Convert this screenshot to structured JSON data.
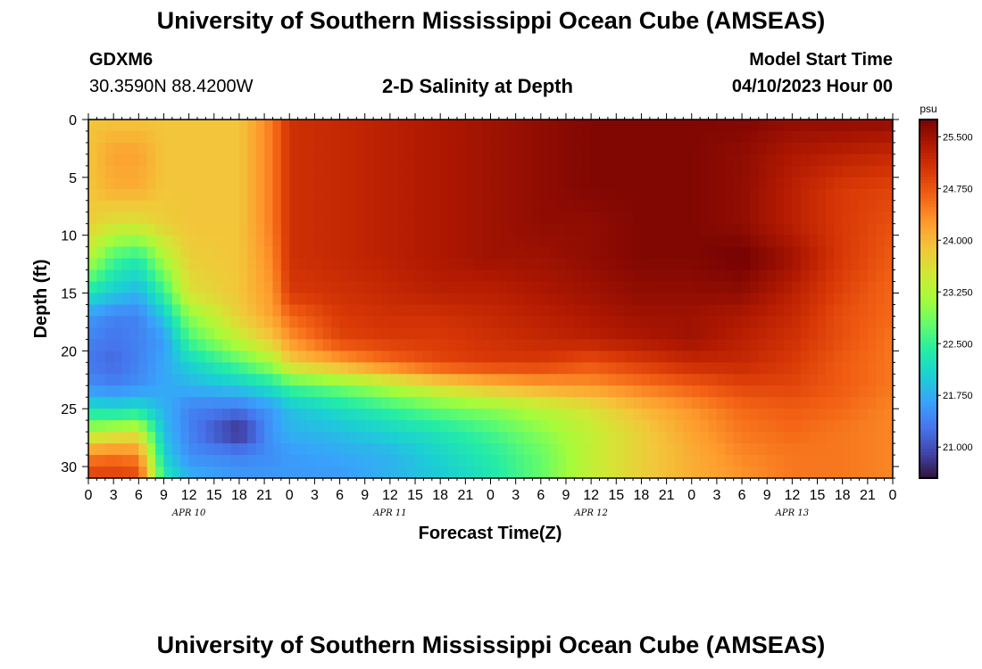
{
  "header": {
    "title": "University of Southern Mississippi Ocean Cube (AMSEAS)",
    "station_id": "GDXM6",
    "coordinates": "30.3590N  88.4200W",
    "plot_title": "2-D Salinity at Depth",
    "model_start_label": "Model Start Time",
    "model_start_value": "04/10/2023 Hour 00"
  },
  "footer": {
    "title": "University of Southern Mississippi Ocean Cube (AMSEAS)"
  },
  "chart_data": {
    "type": "heatmap",
    "title": "2-D Salinity at Depth",
    "xlabel": "Forecast Time(Z)",
    "ylabel": "Depth (ft)",
    "x_hours_range": [
      0,
      96
    ],
    "ylim": [
      0,
      31
    ],
    "y_inverted": true,
    "x_tick_labels": [
      "0",
      "3",
      "6",
      "9",
      "12",
      "15",
      "18",
      "21",
      "0",
      "3",
      "6",
      "9",
      "12",
      "15",
      "18",
      "21",
      "0",
      "3",
      "6",
      "9",
      "12",
      "15",
      "18",
      "21",
      "0",
      "3",
      "6",
      "9",
      "12",
      "15",
      "18",
      "21",
      "0"
    ],
    "y_ticks": [
      0,
      5,
      10,
      15,
      20,
      25,
      30
    ],
    "date_labels": [
      {
        "label": "APR 10",
        "hour": 12
      },
      {
        "label": "APR 11",
        "hour": 36
      },
      {
        "label": "APR 12",
        "hour": 60
      },
      {
        "label": "APR 13",
        "hour": 84
      }
    ],
    "colorbar": {
      "unit": "psu",
      "ticks": [
        "25.500",
        "24.750",
        "24.000",
        "23.250",
        "22.500",
        "21.750",
        "21.000"
      ],
      "tick_values": [
        25.5,
        24.75,
        24.0,
        23.25,
        22.5,
        21.75,
        21.0
      ],
      "vmin": 20.55,
      "vmax": 25.75,
      "colors": [
        "#30123b",
        "#4145ab",
        "#4675ed",
        "#39a2fc",
        "#1bcfd4",
        "#24eca6",
        "#61fc6c",
        "#a4fc3b",
        "#d1e834",
        "#f3c63a",
        "#fe9b2d",
        "#f36315",
        "#d93806",
        "#b11901",
        "#7a0403"
      ]
    },
    "salinity_grid": {
      "hours": [
        0,
        3,
        6,
        9,
        12,
        18,
        22,
        24,
        30,
        36,
        42,
        48,
        54,
        60,
        66,
        72,
        78,
        84,
        90,
        96
      ],
      "depths": [
        0,
        3,
        6,
        9,
        12,
        15,
        17,
        19,
        21,
        23,
        25,
        27,
        29,
        31
      ],
      "values": [
        [
          23.9,
          23.9,
          23.9,
          23.9,
          23.9,
          23.9,
          24.5,
          25.1,
          25.2,
          25.3,
          25.4,
          25.5,
          25.6,
          25.7,
          25.7,
          25.7,
          25.7,
          25.6,
          25.6,
          25.6
        ],
        [
          23.9,
          24.2,
          24.2,
          23.9,
          23.9,
          23.9,
          24.5,
          25.1,
          25.2,
          25.3,
          25.4,
          25.5,
          25.6,
          25.7,
          25.7,
          25.7,
          25.6,
          25.4,
          25.3,
          25.2
        ],
        [
          23.9,
          24.1,
          24.1,
          23.9,
          23.9,
          23.9,
          24.5,
          25.1,
          25.2,
          25.3,
          25.4,
          25.5,
          25.6,
          25.7,
          25.7,
          25.7,
          25.6,
          25.3,
          25.0,
          24.9
        ],
        [
          23.8,
          23.6,
          23.6,
          23.8,
          23.9,
          23.9,
          24.5,
          25.1,
          25.2,
          25.3,
          25.4,
          25.5,
          25.6,
          25.6,
          25.7,
          25.7,
          25.6,
          25.3,
          25.0,
          24.8
        ],
        [
          23.3,
          22.6,
          22.4,
          23.2,
          23.8,
          23.9,
          24.4,
          25.1,
          25.2,
          25.3,
          25.4,
          25.5,
          25.5,
          25.6,
          25.7,
          25.7,
          25.8,
          25.5,
          25.0,
          24.7
        ],
        [
          22.3,
          22.0,
          21.8,
          22.5,
          23.6,
          23.9,
          24.3,
          25.0,
          25.1,
          25.2,
          25.3,
          25.3,
          25.4,
          25.5,
          25.6,
          25.6,
          25.6,
          25.3,
          24.9,
          24.6
        ],
        [
          21.6,
          21.4,
          21.4,
          22.0,
          23.0,
          23.8,
          24.2,
          24.6,
          25.0,
          25.1,
          25.1,
          25.2,
          25.3,
          25.4,
          25.5,
          25.5,
          25.4,
          25.2,
          24.8,
          24.6
        ],
        [
          21.4,
          21.3,
          21.4,
          21.6,
          22.6,
          23.4,
          23.9,
          24.3,
          24.9,
          25.0,
          25.0,
          25.1,
          25.2,
          25.3,
          25.4,
          25.5,
          25.3,
          25.1,
          24.8,
          24.5
        ],
        [
          21.3,
          21.2,
          21.4,
          21.7,
          22.1,
          22.7,
          23.2,
          23.8,
          24.2,
          24.6,
          24.9,
          25.0,
          25.0,
          24.8,
          25.0,
          25.2,
          25.2,
          25.0,
          24.7,
          24.5
        ],
        [
          21.5,
          21.4,
          21.5,
          21.7,
          21.8,
          22.0,
          22.3,
          22.6,
          22.9,
          23.3,
          23.7,
          24.0,
          24.2,
          24.3,
          24.5,
          24.7,
          24.9,
          24.9,
          24.7,
          24.5
        ],
        [
          22.2,
          22.1,
          22.2,
          21.8,
          21.4,
          21.3,
          21.6,
          21.9,
          22.2,
          22.5,
          22.8,
          23.0,
          23.3,
          23.6,
          24.0,
          24.3,
          24.6,
          24.7,
          24.6,
          24.4
        ],
        [
          23.2,
          23.4,
          23.5,
          21.9,
          21.4,
          20.7,
          21.6,
          21.8,
          21.9,
          22.1,
          22.3,
          22.6,
          23.0,
          23.4,
          23.8,
          24.2,
          24.5,
          24.6,
          24.5,
          24.4
        ],
        [
          24.4,
          24.5,
          24.4,
          22.1,
          21.5,
          21.4,
          21.5,
          21.6,
          21.7,
          21.8,
          22.1,
          22.4,
          22.8,
          23.4,
          23.8,
          24.1,
          24.4,
          24.5,
          24.5,
          24.4
        ],
        [
          25.0,
          25.0,
          24.9,
          22.4,
          21.8,
          21.6,
          21.6,
          21.6,
          21.6,
          21.8,
          22.0,
          22.3,
          22.8,
          23.4,
          23.8,
          24.1,
          24.3,
          24.5,
          24.5,
          24.4
        ]
      ]
    }
  }
}
